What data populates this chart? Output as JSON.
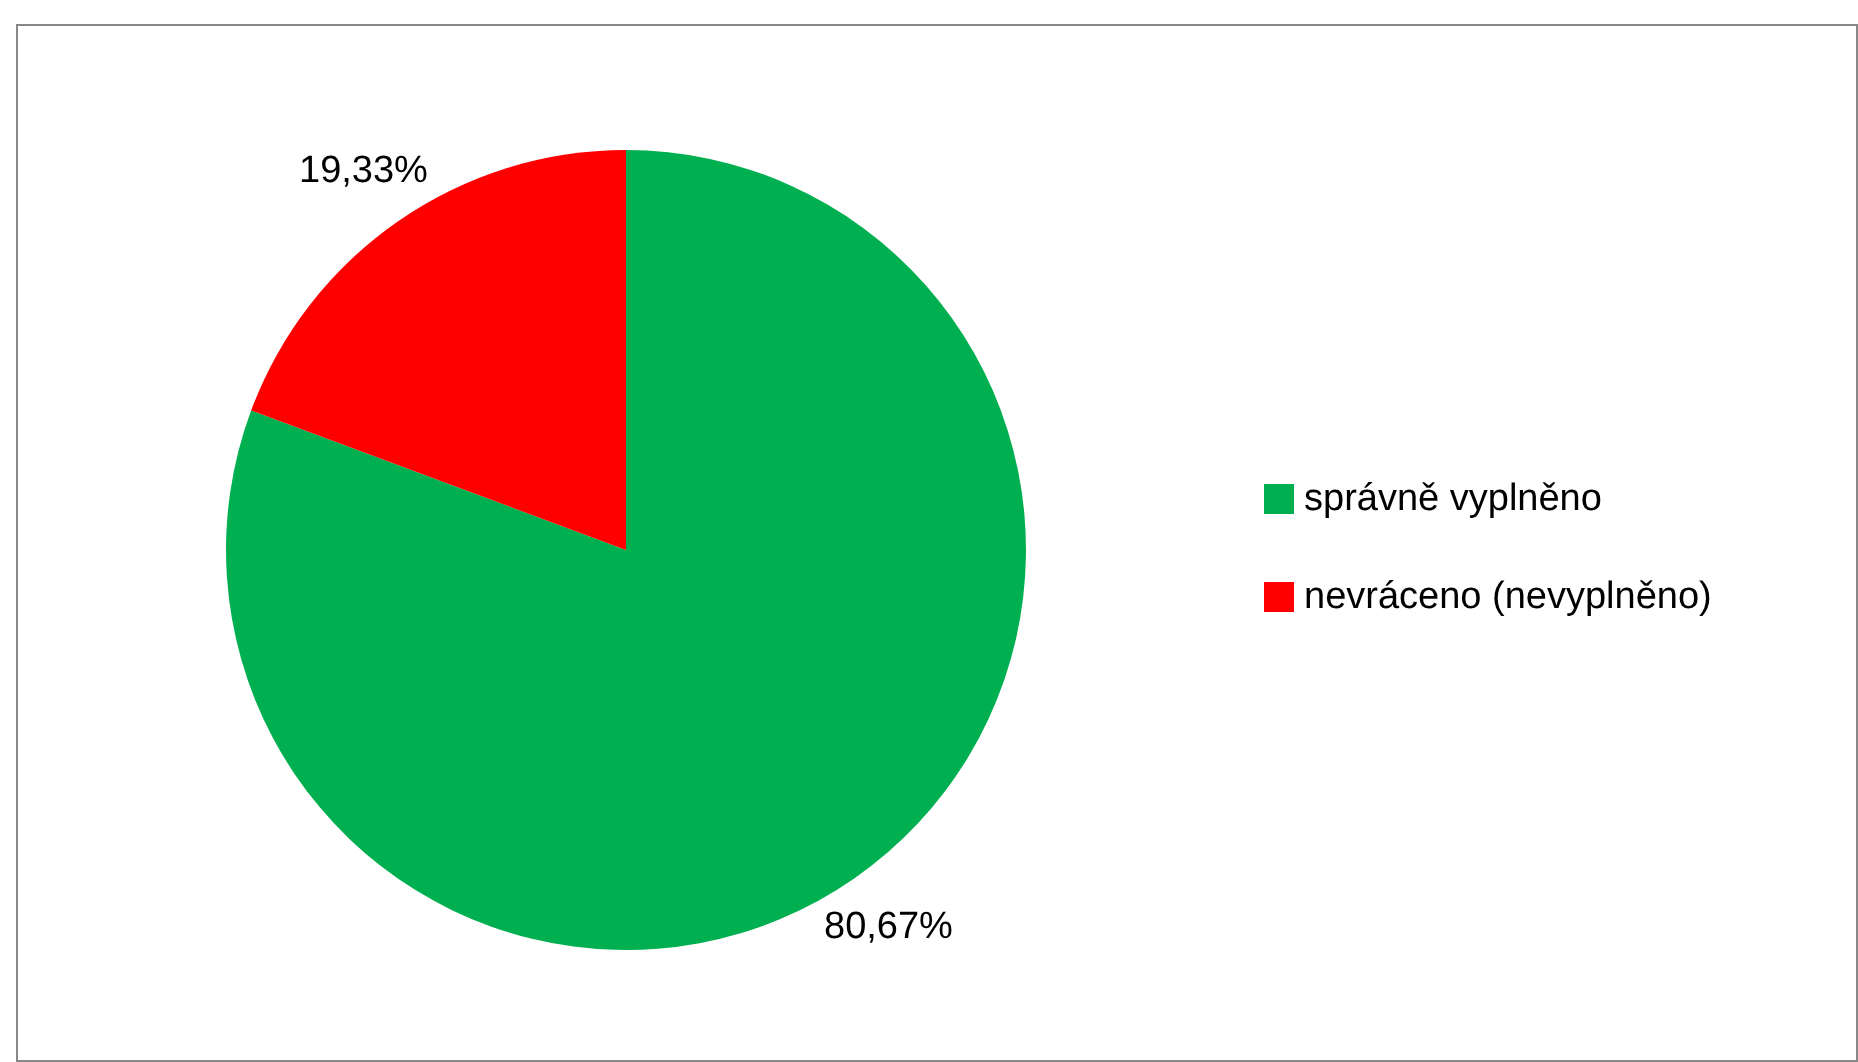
{
  "chart_data": {
    "type": "pie",
    "categories": [
      "správně vyplněno",
      "nevráceno (nevyplněno)"
    ],
    "values": [
      80.67,
      19.33
    ],
    "colors": [
      "#00b050",
      "#ff0000"
    ],
    "value_labels": [
      "80,67%",
      "19,33%"
    ],
    "legend": "right"
  }
}
